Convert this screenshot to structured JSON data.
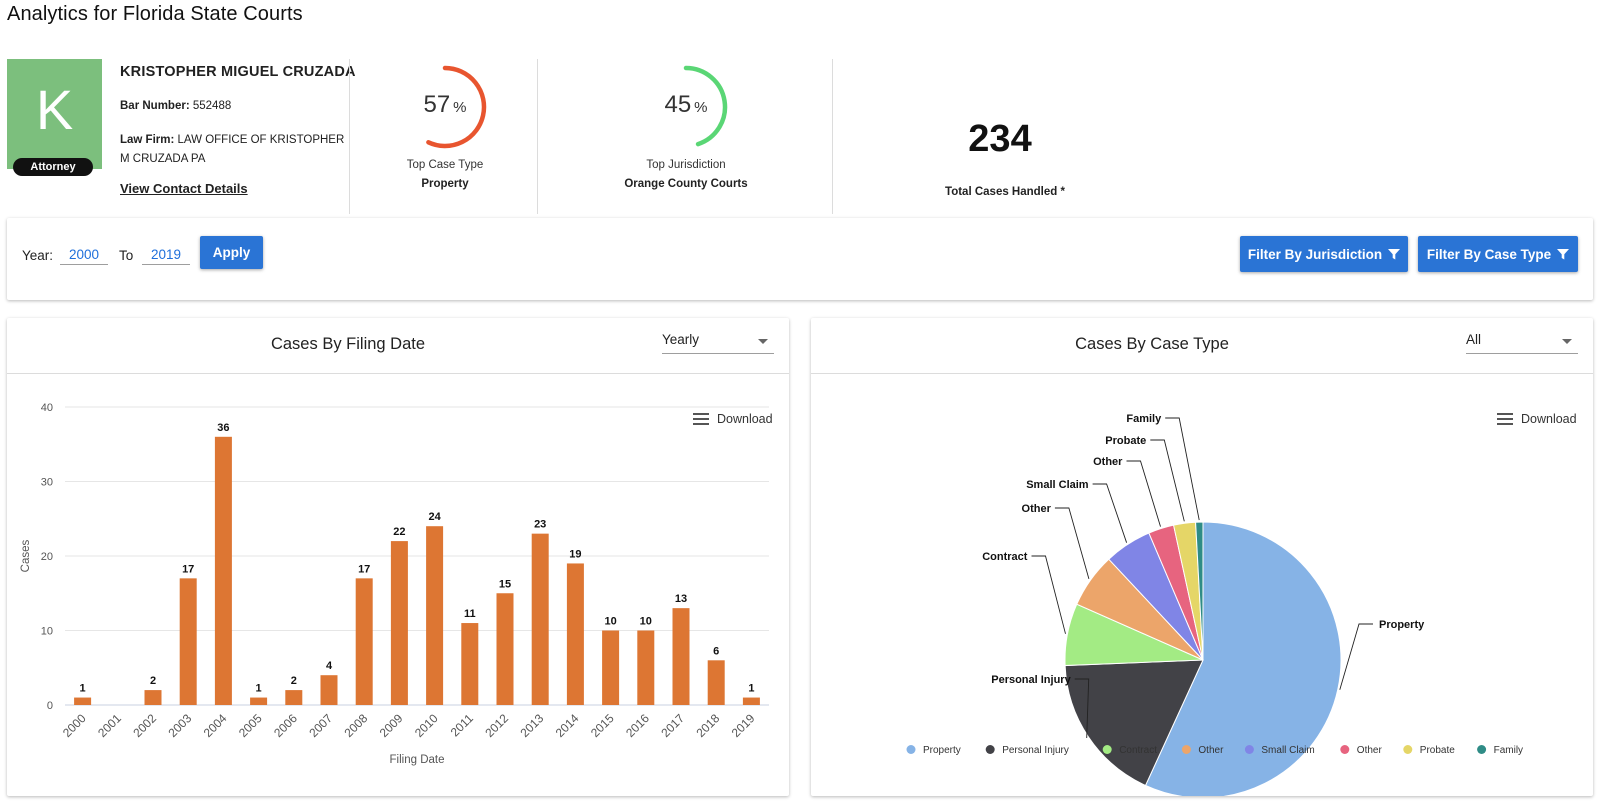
{
  "page": {
    "title": "Analytics for Florida State Courts"
  },
  "profile": {
    "avatar_letter": "K",
    "avatar_color": "#7cbf7d",
    "role_badge": "Attorney",
    "name": "KRISTOPHER MIGUEL CRUZADA",
    "bar_number_label": "Bar Number:",
    "bar_number": "552488",
    "law_firm_label": "Law Firm:",
    "law_firm": "LAW OFFICE OF KRISTOPHER M CRUZADA PA",
    "view_contact": "View Contact Details"
  },
  "stats": {
    "case_type": {
      "value": "57",
      "unit": "%",
      "percent": 57,
      "ring_color": "#e8552f",
      "label": "Top Case Type",
      "sub": "Property"
    },
    "jurisdiction": {
      "value": "45",
      "unit": "%",
      "percent": 45,
      "ring_color": "#5ad675",
      "label": "Top Jurisdiction",
      "sub": "Orange County Courts"
    },
    "total": {
      "value": "234",
      "label": "Total Cases Handled *"
    }
  },
  "filters": {
    "year_label": "Year:",
    "year_from": "2000",
    "to_label": "To",
    "year_to": "2019",
    "apply_label": "Apply",
    "jurisdiction_label": "Filter By Jurisdiction",
    "case_type_label": "Filter By Case Type",
    "button_color": "#2a74d5"
  },
  "filing_chart": {
    "title": "Cases By Filing Date",
    "period_select": "Yearly",
    "download_label": "Download"
  },
  "case_type_chart": {
    "title": "Cases By Case Type",
    "filter_select": "All",
    "download_label": "Download"
  },
  "chart_data": [
    {
      "type": "bar",
      "title": "Cases By Filing Date",
      "xlabel": "Filing Date",
      "ylabel": "Cases",
      "ylim": [
        0,
        40
      ],
      "yticks": [
        0,
        10,
        20,
        30,
        40
      ],
      "grid": true,
      "color": "#dd7633",
      "categories": [
        "2000",
        "2001",
        "2002",
        "2003",
        "2004",
        "2005",
        "2006",
        "2007",
        "2008",
        "2009",
        "2010",
        "2011",
        "2012",
        "2013",
        "2014",
        "2015",
        "2016",
        "2017",
        "2018",
        "2019"
      ],
      "values": [
        1,
        0,
        2,
        17,
        36,
        1,
        2,
        4,
        17,
        22,
        24,
        11,
        15,
        23,
        19,
        10,
        10,
        13,
        6,
        1
      ],
      "data_labels": [
        "1",
        "",
        "2",
        "17",
        "36",
        "1",
        "2",
        "4",
        "17",
        "22",
        "24",
        "11",
        "15",
        "23",
        "19",
        "10",
        "10",
        "13",
        "6",
        "1"
      ]
    },
    {
      "type": "pie",
      "title": "Cases By Case Type",
      "legend_position": "bottom",
      "slices": [
        {
          "label": "Property",
          "value": 133,
          "color": "#86b3e6"
        },
        {
          "label": "Personal Injury",
          "value": 41,
          "color": "#424247"
        },
        {
          "label": "Contract",
          "value": 17,
          "color": "#a3eb84"
        },
        {
          "label": "Other",
          "value": 15,
          "color": "#eca56a"
        },
        {
          "label": "Small Claim",
          "value": 13,
          "color": "#8085e6"
        },
        {
          "label": "Other",
          "value": 7,
          "color": "#e7647f"
        },
        {
          "label": "Probate",
          "value": 6,
          "color": "#e5d667"
        },
        {
          "label": "Family",
          "value": 2,
          "color": "#2f8c86"
        }
      ]
    }
  ]
}
